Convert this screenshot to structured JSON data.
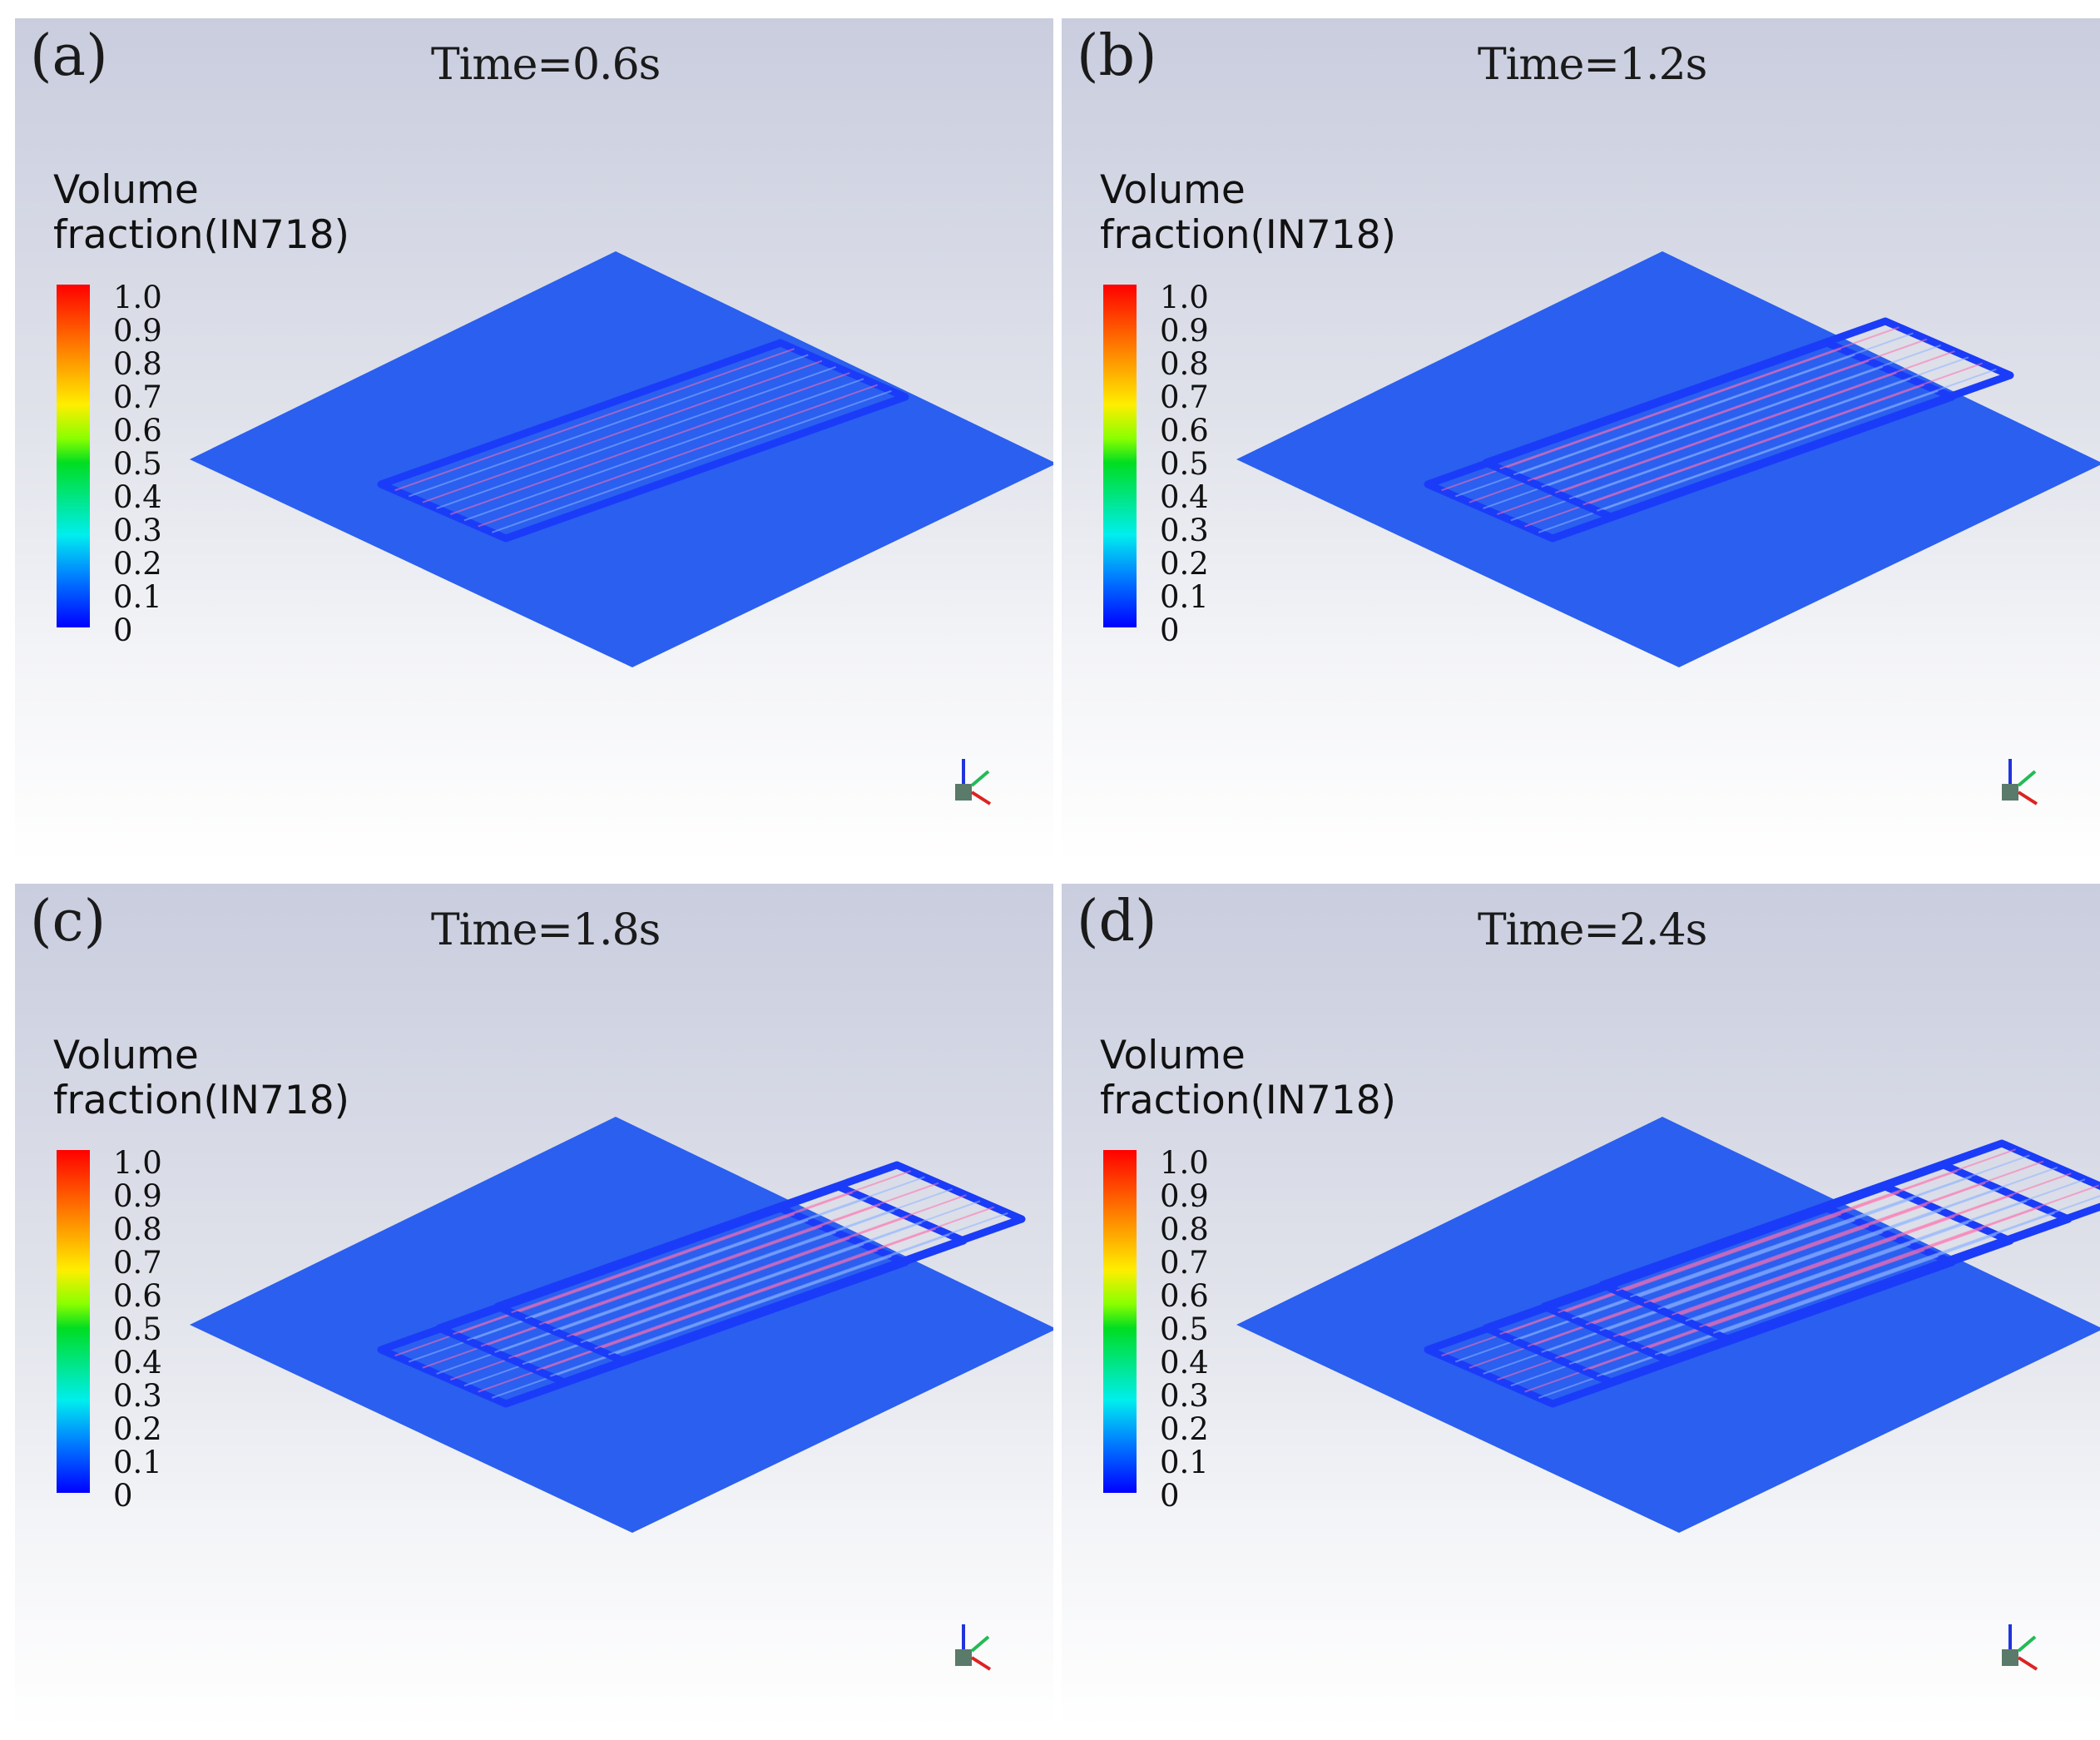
{
  "legend": {
    "title_line1": "Volume",
    "title_line2": "fraction(IN718)",
    "ticks": [
      "1.0",
      "0.9",
      "0.8",
      "0.7",
      "0.6",
      "0.5",
      "0.4",
      "0.3",
      "0.2",
      "0.1",
      "0"
    ]
  },
  "panels": [
    {
      "label": "(a)",
      "time": "Time=0.6s",
      "tracks": 1
    },
    {
      "label": "(b)",
      "time": "Time=1.2s",
      "tracks": 2
    },
    {
      "label": "(c)",
      "time": "Time=1.8s",
      "tracks": 3
    },
    {
      "label": "(d)",
      "time": "Time=2.4s",
      "tracks": 4
    }
  ],
  "colors": {
    "substrate": "#2a5ff0",
    "track": "#1a3cf8",
    "hatch": "#ff6fae"
  }
}
